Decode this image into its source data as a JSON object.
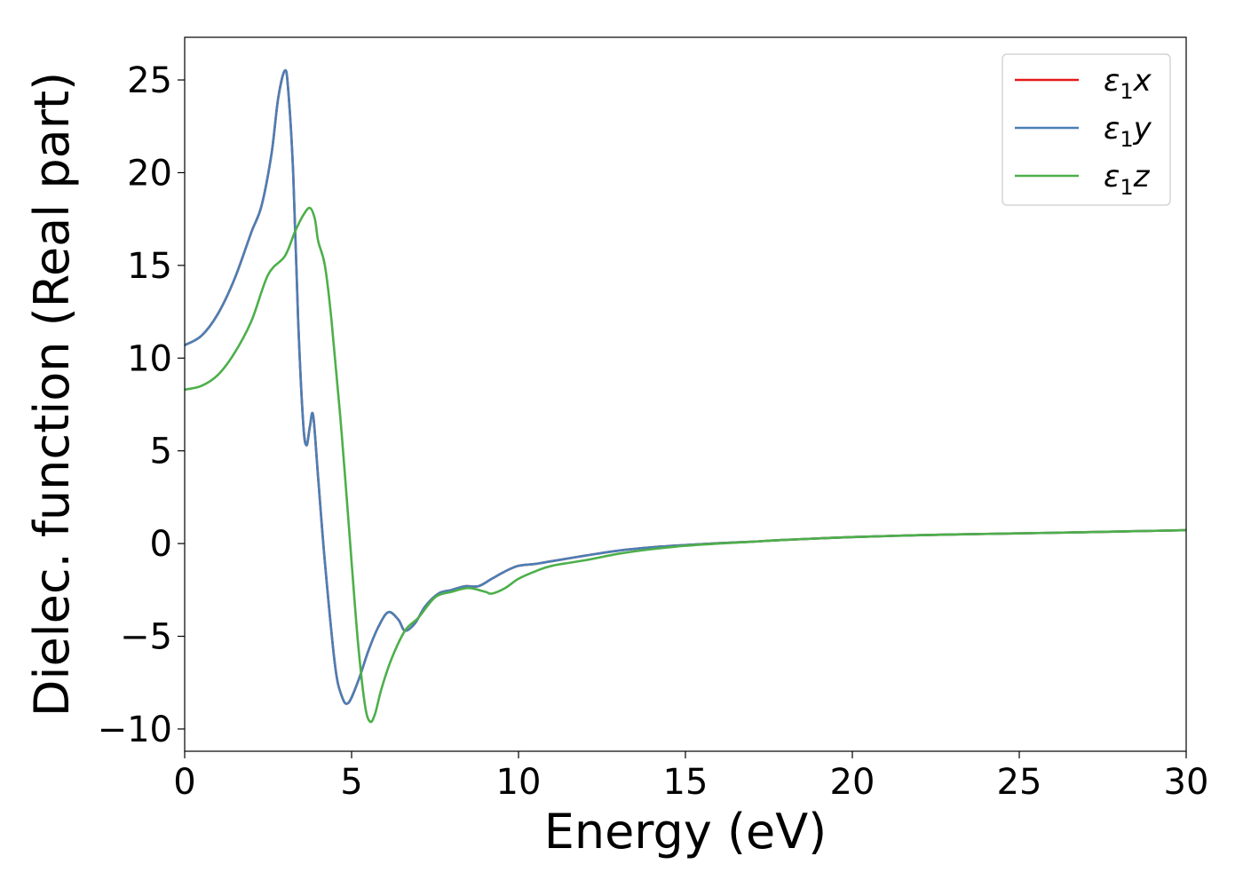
{
  "chart_data": {
    "type": "line",
    "xlabel": "Energy (eV)",
    "ylabel": "Dielec. function (Real part)",
    "xlim": [
      0,
      30
    ],
    "ylim": [
      -11.2,
      27.3
    ],
    "xticks": [
      0,
      5,
      10,
      15,
      20,
      25,
      30
    ],
    "xtick_labels": [
      "0",
      "5",
      "10",
      "15",
      "20",
      "25",
      "30"
    ],
    "yticks": [
      -10,
      -5,
      0,
      5,
      10,
      15,
      20,
      25
    ],
    "ytick_labels": [
      "−10",
      "−5",
      "0",
      "5",
      "10",
      "15",
      "20",
      "25"
    ],
    "grid": false,
    "legend_position": "top-right",
    "series": [
      {
        "name": "ε₁x",
        "legend_base": "ε",
        "legend_sub": "1",
        "legend_var": "x",
        "color": "#e41a1c",
        "x": [
          0,
          0.5,
          1,
          1.5,
          2,
          2.3,
          2.6,
          2.8,
          3.0,
          3.1,
          3.25,
          3.4,
          3.55,
          3.65,
          3.75,
          3.85,
          4.0,
          4.2,
          4.5,
          4.7,
          4.9,
          5.2,
          5.5,
          5.8,
          6.1,
          6.4,
          6.6,
          6.9,
          7.2,
          7.6,
          8.0,
          8.4,
          8.8,
          9.2,
          9.6,
          10.0,
          10.5,
          11.0,
          12.0,
          13.0,
          14.0,
          15.0,
          16.0,
          17.0,
          18.0,
          20.0,
          22.0,
          24.0,
          26.0,
          28.0,
          30.0
        ],
        "y": [
          10.7,
          11.2,
          12.4,
          14.3,
          16.8,
          18.2,
          21.0,
          24.0,
          25.5,
          24.5,
          20.0,
          12.0,
          6.5,
          5.3,
          6.3,
          6.9,
          3.5,
          -1.0,
          -6.5,
          -8.2,
          -8.6,
          -7.4,
          -5.8,
          -4.5,
          -3.7,
          -4.1,
          -4.7,
          -4.3,
          -3.4,
          -2.7,
          -2.5,
          -2.3,
          -2.3,
          -1.9,
          -1.5,
          -1.2,
          -1.1,
          -0.95,
          -0.65,
          -0.38,
          -0.2,
          -0.08,
          0.02,
          0.1,
          0.2,
          0.35,
          0.45,
          0.52,
          0.58,
          0.65,
          0.72
        ]
      },
      {
        "name": "ε₁y",
        "legend_base": "ε",
        "legend_sub": "1",
        "legend_var": "y",
        "color": "#4a7fb5",
        "x": [
          0,
          0.5,
          1,
          1.5,
          2,
          2.3,
          2.6,
          2.8,
          3.0,
          3.1,
          3.25,
          3.4,
          3.55,
          3.65,
          3.75,
          3.85,
          4.0,
          4.2,
          4.5,
          4.7,
          4.9,
          5.2,
          5.5,
          5.8,
          6.1,
          6.4,
          6.6,
          6.9,
          7.2,
          7.6,
          8.0,
          8.4,
          8.8,
          9.2,
          9.6,
          10.0,
          10.5,
          11.0,
          12.0,
          13.0,
          14.0,
          15.0,
          16.0,
          17.0,
          18.0,
          20.0,
          22.0,
          24.0,
          26.0,
          28.0,
          30.0
        ],
        "y": [
          10.7,
          11.2,
          12.4,
          14.3,
          16.8,
          18.2,
          21.0,
          24.0,
          25.5,
          24.5,
          20.0,
          12.0,
          6.5,
          5.3,
          6.3,
          6.9,
          3.5,
          -1.0,
          -6.5,
          -8.2,
          -8.6,
          -7.4,
          -5.8,
          -4.5,
          -3.7,
          -4.1,
          -4.7,
          -4.3,
          -3.4,
          -2.7,
          -2.5,
          -2.3,
          -2.3,
          -1.9,
          -1.5,
          -1.2,
          -1.1,
          -0.95,
          -0.65,
          -0.38,
          -0.2,
          -0.08,
          0.02,
          0.1,
          0.2,
          0.35,
          0.45,
          0.52,
          0.58,
          0.65,
          0.72
        ]
      },
      {
        "name": "ε₁z",
        "legend_base": "ε",
        "legend_sub": "1",
        "legend_var": "z",
        "color": "#4daf4a",
        "x": [
          0,
          0.5,
          1,
          1.5,
          2,
          2.5,
          3.0,
          3.3,
          3.55,
          3.75,
          3.9,
          4.0,
          4.2,
          4.4,
          4.7,
          5.0,
          5.2,
          5.4,
          5.55,
          5.7,
          5.9,
          6.2,
          6.6,
          7.0,
          7.5,
          8.0,
          8.5,
          9.0,
          9.2,
          9.6,
          10.0,
          10.5,
          11.0,
          12.0,
          13.0,
          14.0,
          15.0,
          16.0,
          17.0,
          18.0,
          20.0,
          22.0,
          24.0,
          26.0,
          28.0,
          30.0
        ],
        "y": [
          8.3,
          8.5,
          9.1,
          10.3,
          12.0,
          14.5,
          15.5,
          16.8,
          17.7,
          18.1,
          17.5,
          16.3,
          15.0,
          12.0,
          6.0,
          -1.0,
          -5.5,
          -8.7,
          -9.6,
          -9.2,
          -7.8,
          -6.2,
          -4.7,
          -4.0,
          -2.9,
          -2.6,
          -2.4,
          -2.6,
          -2.7,
          -2.4,
          -1.9,
          -1.5,
          -1.2,
          -0.9,
          -0.55,
          -0.3,
          -0.12,
          0.0,
          0.1,
          0.2,
          0.35,
          0.45,
          0.52,
          0.58,
          0.65,
          0.72
        ]
      }
    ]
  }
}
